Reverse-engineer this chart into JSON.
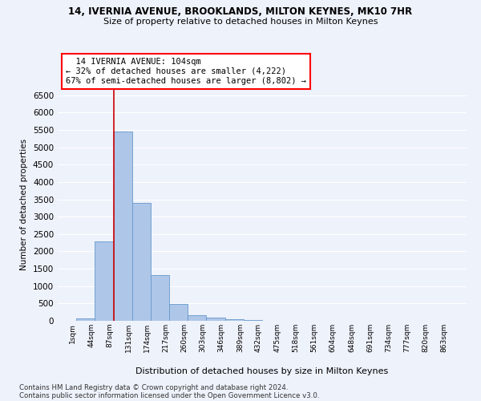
{
  "title_line1": "14, IVERNIA AVENUE, BROOKLANDS, MILTON KEYNES, MK10 7HR",
  "title_line2": "Size of property relative to detached houses in Milton Keynes",
  "xlabel": "Distribution of detached houses by size in Milton Keynes",
  "ylabel": "Number of detached properties",
  "footer_line1": "Contains HM Land Registry data © Crown copyright and database right 2024.",
  "footer_line2": "Contains public sector information licensed under the Open Government Licence v3.0.",
  "annotation_title": "14 IVERNIA AVENUE: 104sqm",
  "annotation_line2": "← 32% of detached houses are smaller (4,222)",
  "annotation_line3": "67% of semi-detached houses are larger (8,802) →",
  "bar_color": "#aec6e8",
  "bar_edge_color": "#6699cc",
  "red_line_color": "#cc0000",
  "background_color": "#eef2fb",
  "grid_color": "#ffffff",
  "bins": [
    1,
    44,
    87,
    131,
    174,
    217,
    260,
    303,
    346,
    389,
    432,
    475,
    518,
    561,
    604,
    648,
    691,
    734,
    777,
    820,
    863
  ],
  "counts": [
    70,
    2280,
    5450,
    3390,
    1310,
    480,
    165,
    90,
    55,
    30,
    0,
    0,
    0,
    0,
    0,
    0,
    0,
    0,
    0,
    0
  ],
  "property_size": 104,
  "red_line_bin_index": 2,
  "ylim": [
    0,
    6700
  ],
  "yticks": [
    0,
    500,
    1000,
    1500,
    2000,
    2500,
    3000,
    3500,
    4000,
    4500,
    5000,
    5500,
    6000,
    6500
  ]
}
